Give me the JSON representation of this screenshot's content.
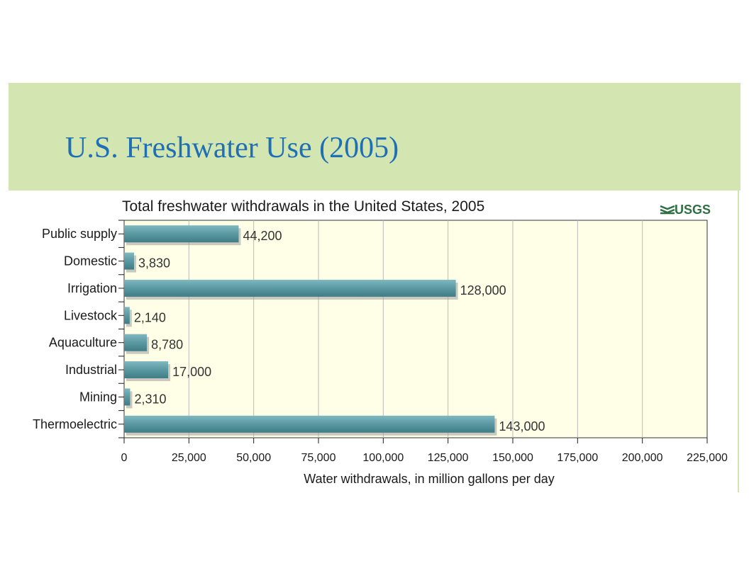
{
  "slide": {
    "title": "U.S. Freshwater Use (2005)",
    "title_color": "#1f6fb5",
    "band_color": "#d3e6b2"
  },
  "chart_data": {
    "type": "bar",
    "orientation": "horizontal",
    "title": "Total freshwater withdrawals in the United States, 2005",
    "logo_text": "USGS",
    "xlabel": "Water withdrawals, in million gallons per day",
    "ylabel": "",
    "xlim": [
      0,
      225000
    ],
    "xticks": [
      0,
      25000,
      50000,
      75000,
      100000,
      125000,
      150000,
      175000,
      200000,
      225000
    ],
    "xtick_labels": [
      "0",
      "25,000",
      "50,000",
      "75,000",
      "100,000",
      "125,000",
      "150,000",
      "175,000",
      "200,000",
      "225,000"
    ],
    "grid": true,
    "categories": [
      "Public supply",
      "Domestic",
      "Irrigation",
      "Livestock",
      "Aquaculture",
      "Industrial",
      "Mining",
      "Thermoelectric"
    ],
    "values": [
      44200,
      3830,
      128000,
      2140,
      8780,
      17000,
      2310,
      143000
    ],
    "value_labels": [
      "44,200",
      "3,830",
      "128,000",
      "2,140",
      "8,780",
      "17,000",
      "2,310",
      "143,000"
    ],
    "colors": {
      "bar": "#5a98a2",
      "plot_background": "#ffffe8",
      "grid": "#b9b9b9",
      "logo": "#2f6f41"
    }
  }
}
